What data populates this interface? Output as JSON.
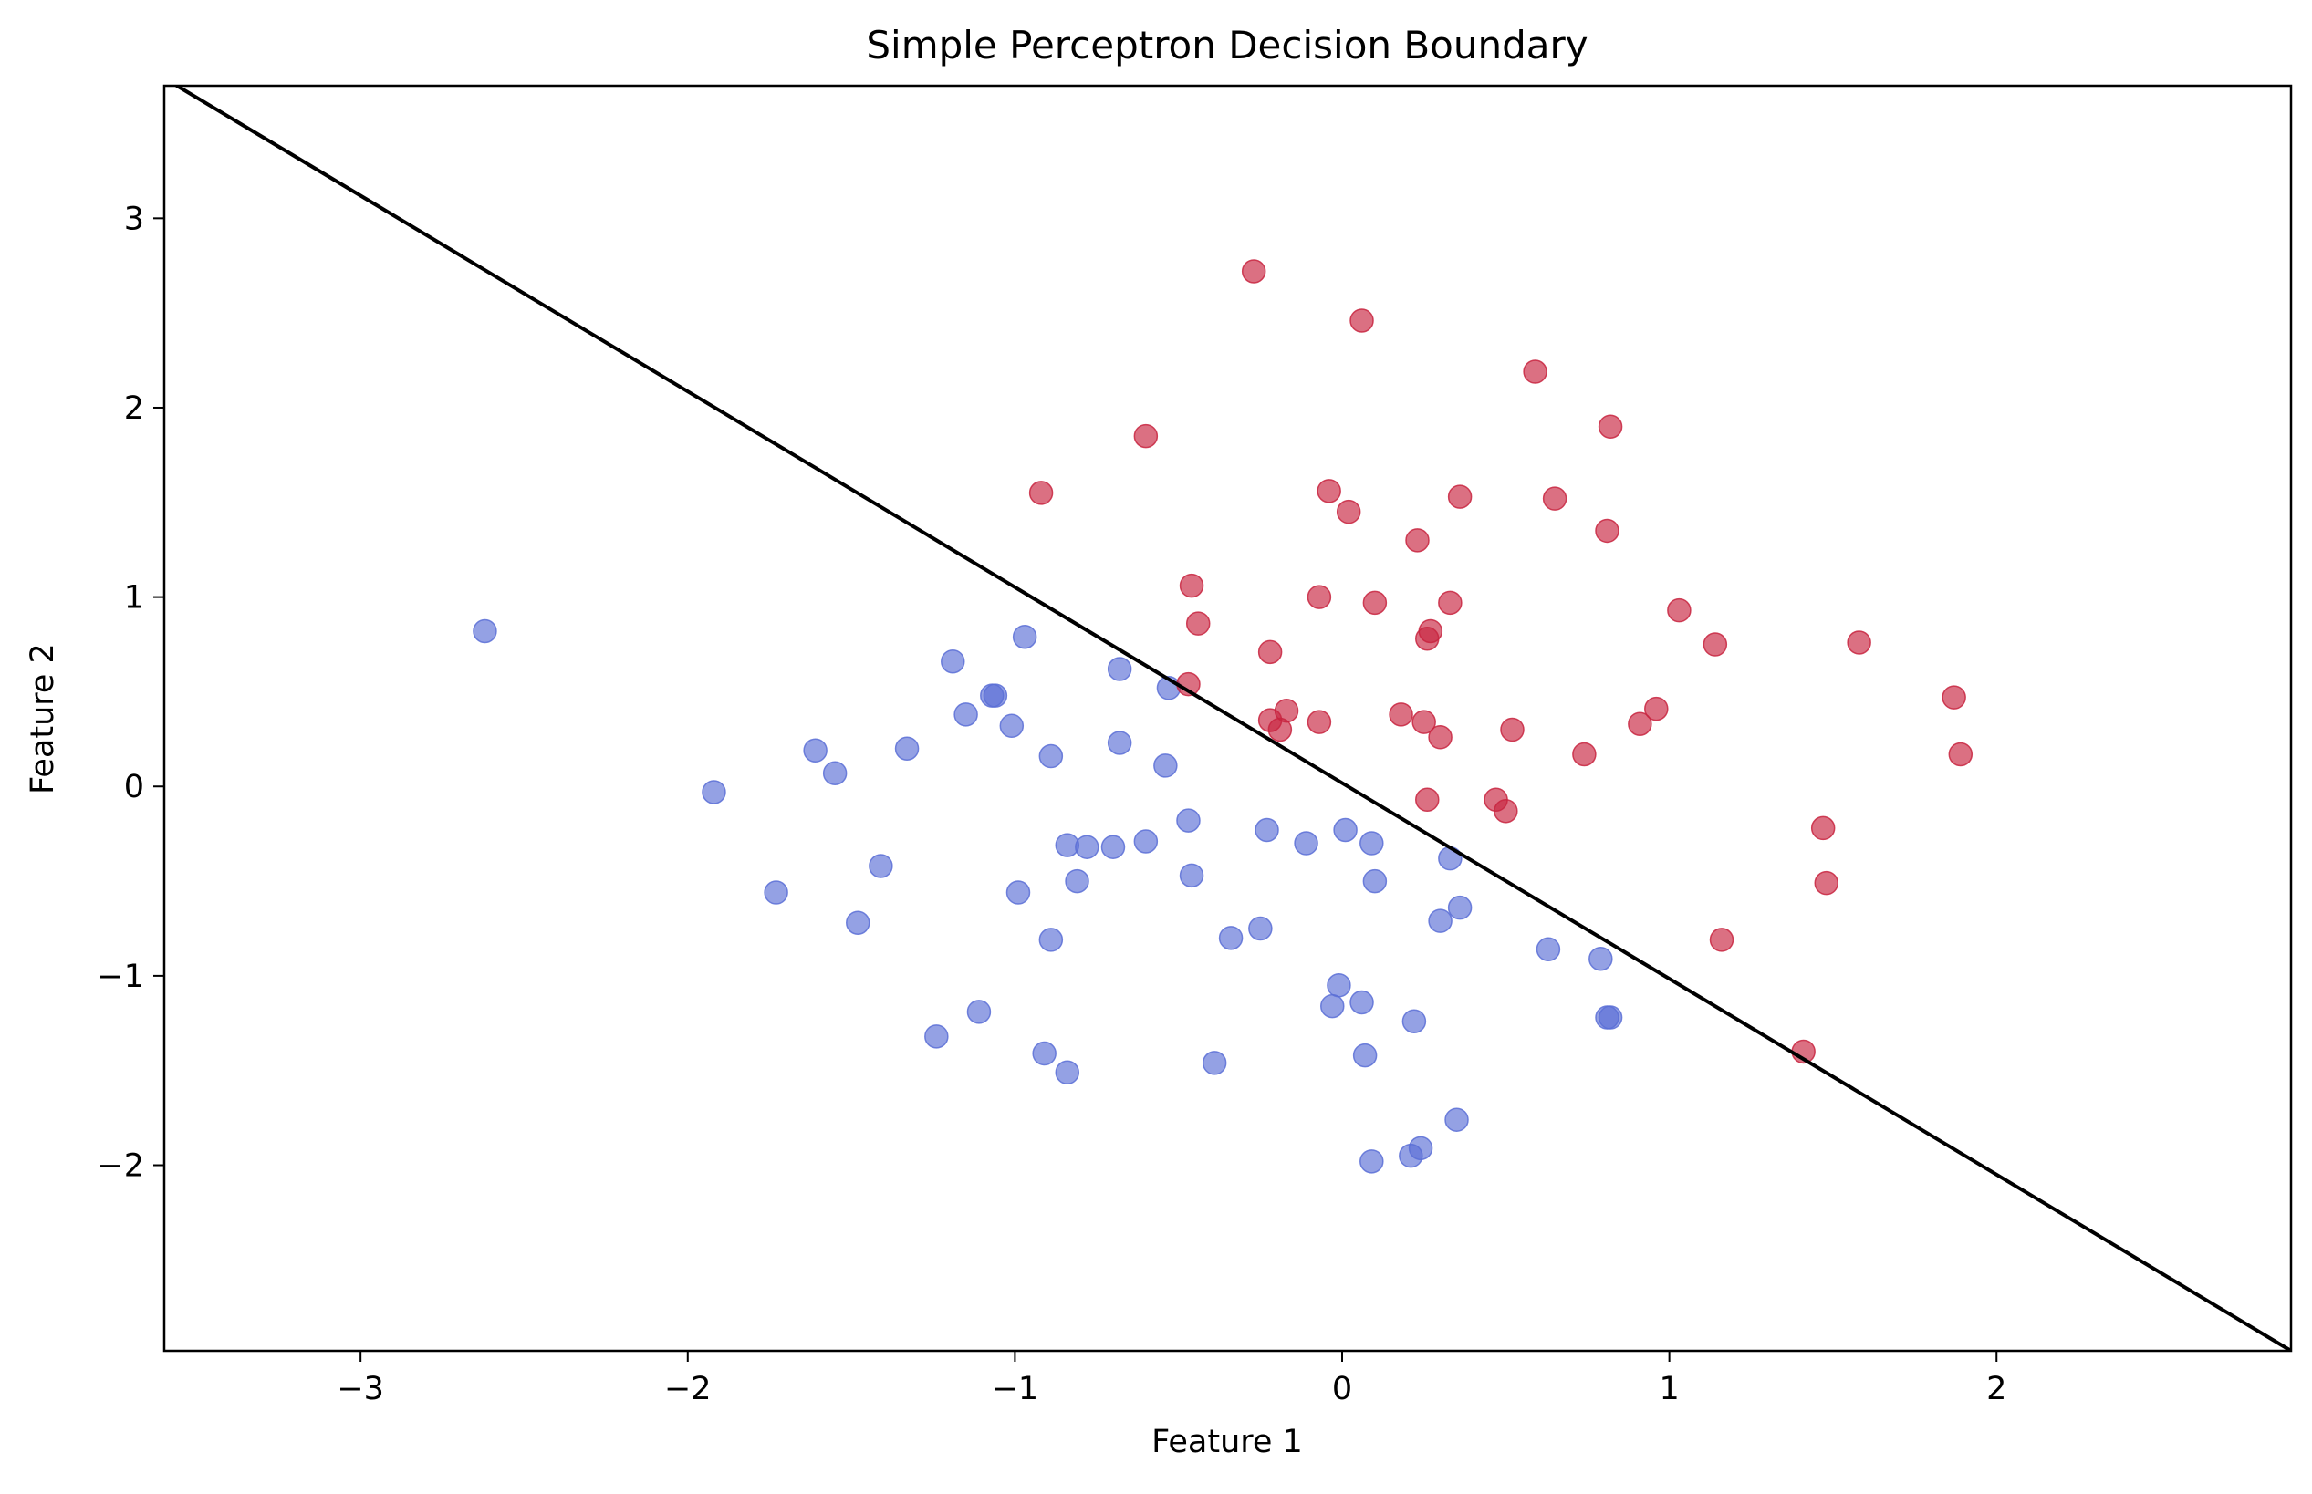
{
  "chart_data": {
    "type": "scatter",
    "title": "Simple Perceptron Decision Boundary",
    "xlabel": "Feature 1",
    "ylabel": "Feature 2",
    "xlim": [
      -3.6,
      2.9
    ],
    "ylim": [
      -2.98,
      3.7
    ],
    "xticks": [
      -3,
      -2,
      -1,
      0,
      1,
      2
    ],
    "xtick_labels": [
      "−3",
      "−2",
      "−1",
      "0",
      "1",
      "2"
    ],
    "yticks": [
      -2,
      -1,
      0,
      1,
      2,
      3
    ],
    "ytick_labels": [
      "−2",
      "−1",
      "0",
      "1",
      "2",
      "3"
    ],
    "grid": false,
    "legend": "none",
    "colors": {
      "class_0": "#5a6fd6",
      "class_1": "#c8243f",
      "boundary": "#000000"
    },
    "boundary_line": {
      "x": [
        -3.6,
        2.9
      ],
      "y": [
        3.74,
        -2.98
      ]
    },
    "series": [
      {
        "name": "class_0",
        "color": "#5a6fd6",
        "points": [
          [
            -2.62,
            0.82
          ],
          [
            -1.92,
            -0.03
          ],
          [
            -1.73,
            -0.56
          ],
          [
            -1.61,
            0.19
          ],
          [
            -1.55,
            0.07
          ],
          [
            -1.48,
            -0.72
          ],
          [
            -1.41,
            -0.42
          ],
          [
            -1.33,
            0.2
          ],
          [
            -1.24,
            -1.32
          ],
          [
            -1.19,
            0.66
          ],
          [
            -1.15,
            0.38
          ],
          [
            -1.11,
            -1.19
          ],
          [
            -1.07,
            0.48
          ],
          [
            -1.06,
            0.48
          ],
          [
            -1.01,
            0.32
          ],
          [
            -0.99,
            -0.56
          ],
          [
            -0.97,
            0.79
          ],
          [
            -0.91,
            -1.41
          ],
          [
            -0.89,
            0.16
          ],
          [
            -0.89,
            -0.81
          ],
          [
            -0.84,
            -0.31
          ],
          [
            -0.84,
            -1.51
          ],
          [
            -0.81,
            -0.5
          ],
          [
            -0.78,
            -0.32
          ],
          [
            -0.7,
            -0.32
          ],
          [
            -0.68,
            0.62
          ],
          [
            -0.68,
            0.23
          ],
          [
            -0.6,
            -0.29
          ],
          [
            -0.54,
            0.11
          ],
          [
            -0.53,
            0.52
          ],
          [
            -0.47,
            -0.18
          ],
          [
            -0.46,
            -0.47
          ],
          [
            -0.39,
            -1.46
          ],
          [
            -0.34,
            -0.8
          ],
          [
            -0.25,
            -0.75
          ],
          [
            -0.23,
            -0.23
          ],
          [
            -0.11,
            -0.3
          ],
          [
            -0.03,
            -1.16
          ],
          [
            -0.01,
            -1.05
          ],
          [
            0.01,
            -0.23
          ],
          [
            0.06,
            -1.14
          ],
          [
            0.07,
            -1.42
          ],
          [
            0.09,
            -0.3
          ],
          [
            0.1,
            -0.5
          ],
          [
            0.09,
            -1.98
          ],
          [
            0.21,
            -1.95
          ],
          [
            0.22,
            -1.24
          ],
          [
            0.24,
            -1.91
          ],
          [
            0.3,
            -0.71
          ],
          [
            0.33,
            -0.38
          ],
          [
            0.35,
            -1.76
          ],
          [
            0.36,
            -0.64
          ],
          [
            0.63,
            -0.86
          ],
          [
            0.79,
            -0.91
          ],
          [
            0.81,
            -1.22
          ],
          [
            0.82,
            -1.22
          ]
        ]
      },
      {
        "name": "class_1",
        "color": "#c8243f",
        "points": [
          [
            -0.27,
            2.72
          ],
          [
            0.06,
            2.46
          ],
          [
            0.59,
            2.19
          ],
          [
            0.82,
            1.9
          ],
          [
            -0.6,
            1.85
          ],
          [
            -0.92,
            1.55
          ],
          [
            -0.04,
            1.56
          ],
          [
            0.36,
            1.53
          ],
          [
            0.65,
            1.52
          ],
          [
            0.02,
            1.45
          ],
          [
            0.81,
            1.35
          ],
          [
            0.23,
            1.3
          ],
          [
            -0.46,
            1.06
          ],
          [
            -0.07,
            1.0
          ],
          [
            0.1,
            0.97
          ],
          [
            0.33,
            0.97
          ],
          [
            1.03,
            0.93
          ],
          [
            -0.44,
            0.86
          ],
          [
            0.27,
            0.82
          ],
          [
            0.26,
            0.78
          ],
          [
            1.14,
            0.75
          ],
          [
            1.58,
            0.76
          ],
          [
            -0.22,
            0.71
          ],
          [
            -0.47,
            0.54
          ],
          [
            1.87,
            0.47
          ],
          [
            -0.17,
            0.4
          ],
          [
            0.96,
            0.41
          ],
          [
            0.18,
            0.38
          ],
          [
            -0.22,
            0.35
          ],
          [
            -0.07,
            0.34
          ],
          [
            0.25,
            0.34
          ],
          [
            0.91,
            0.33
          ],
          [
            -0.19,
            0.3
          ],
          [
            0.52,
            0.3
          ],
          [
            0.3,
            0.26
          ],
          [
            0.74,
            0.17
          ],
          [
            1.89,
            0.17
          ],
          [
            0.26,
            -0.07
          ],
          [
            0.47,
            -0.07
          ],
          [
            0.5,
            -0.13
          ],
          [
            1.47,
            -0.22
          ],
          [
            1.48,
            -0.51
          ],
          [
            1.16,
            -0.81
          ],
          [
            1.41,
            -1.4
          ]
        ]
      }
    ]
  }
}
